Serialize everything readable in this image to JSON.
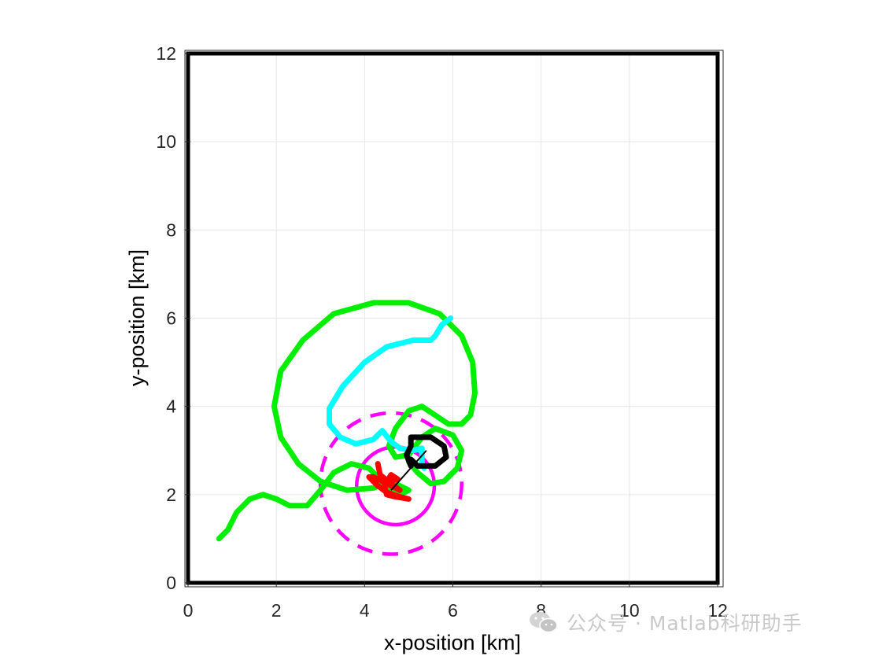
{
  "chart_data": {
    "type": "line",
    "xlabel": "x-position [km]",
    "ylabel": "y-position [km]",
    "xlim": [
      0,
      12
    ],
    "ylim": [
      0,
      12
    ],
    "xticks": [
      0,
      2,
      4,
      6,
      8,
      10,
      12
    ],
    "yticks": [
      0,
      2,
      4,
      6,
      8,
      10,
      12
    ],
    "grid": true,
    "colors": {
      "green": "#00ee00",
      "cyan": "#00ffff",
      "black": "#000000",
      "red": "#ff0000",
      "magenta": "#ff00ff",
      "border": "#000000"
    },
    "series": [
      {
        "color": "green",
        "points": [
          [
            0.7,
            1.0
          ],
          [
            0.9,
            1.2
          ],
          [
            1.1,
            1.6
          ],
          [
            1.4,
            1.9
          ],
          [
            1.7,
            2.0
          ],
          [
            2.0,
            1.9
          ],
          [
            2.3,
            1.75
          ],
          [
            2.7,
            1.75
          ],
          [
            3.0,
            2.1
          ],
          [
            3.3,
            2.5
          ],
          [
            3.7,
            2.7
          ],
          [
            4.1,
            2.6
          ],
          [
            4.4,
            2.3
          ],
          [
            4.6,
            2.1
          ],
          [
            4.8,
            2.0
          ],
          [
            5.0,
            2.1
          ],
          [
            4.6,
            2.3
          ],
          [
            4.2,
            2.15
          ],
          [
            3.6,
            2.1
          ],
          [
            3.0,
            2.3
          ],
          [
            2.5,
            2.7
          ],
          [
            2.1,
            3.3
          ],
          [
            1.95,
            4.0
          ],
          [
            2.1,
            4.8
          ],
          [
            2.6,
            5.5
          ],
          [
            3.3,
            6.1
          ],
          [
            4.2,
            6.35
          ],
          [
            5.0,
            6.35
          ],
          [
            5.7,
            6.1
          ],
          [
            6.2,
            5.6
          ],
          [
            6.45,
            5.0
          ],
          [
            6.5,
            4.3
          ],
          [
            6.4,
            3.8
          ],
          [
            6.2,
            3.6
          ],
          [
            5.9,
            3.6
          ],
          [
            5.6,
            3.8
          ],
          [
            5.3,
            4.0
          ],
          [
            5.0,
            3.9
          ],
          [
            4.7,
            3.5
          ],
          [
            4.55,
            3.1
          ],
          [
            4.7,
            2.85
          ],
          [
            5.0,
            2.9
          ],
          [
            5.3,
            3.3
          ],
          [
            5.6,
            3.5
          ],
          [
            6.0,
            3.35
          ],
          [
            6.2,
            3.0
          ],
          [
            6.1,
            2.6
          ],
          [
            5.8,
            2.3
          ],
          [
            5.5,
            2.25
          ],
          [
            5.2,
            2.5
          ],
          [
            5.0,
            2.75
          ]
        ]
      },
      {
        "color": "cyan",
        "points": [
          [
            5.95,
            6.0
          ],
          [
            5.75,
            5.85
          ],
          [
            5.6,
            5.6
          ],
          [
            5.5,
            5.5
          ],
          [
            5.1,
            5.5
          ],
          [
            4.5,
            5.35
          ],
          [
            4.0,
            5.0
          ],
          [
            3.5,
            4.45
          ],
          [
            3.2,
            3.95
          ],
          [
            3.2,
            3.6
          ],
          [
            3.45,
            3.3
          ],
          [
            3.8,
            3.15
          ],
          [
            4.2,
            3.25
          ],
          [
            4.4,
            3.45
          ],
          [
            4.6,
            3.2
          ],
          [
            4.8,
            3.05
          ],
          [
            5.1,
            3.0
          ],
          [
            5.3,
            3.05
          ],
          [
            5.3,
            2.8
          ],
          [
            5.3,
            2.7
          ],
          [
            5.35,
            2.6
          ]
        ]
      },
      {
        "color": "black",
        "points": [
          [
            5.05,
            2.65
          ],
          [
            4.95,
            2.9
          ],
          [
            5.05,
            3.1
          ],
          [
            5.05,
            3.3
          ],
          [
            5.5,
            3.3
          ],
          [
            5.8,
            3.1
          ],
          [
            5.85,
            2.85
          ],
          [
            5.6,
            2.65
          ],
          [
            5.2,
            2.65
          ],
          [
            5.05,
            2.8
          ]
        ]
      },
      {
        "color": "red",
        "points": [
          [
            4.3,
            2.7
          ],
          [
            4.35,
            2.45
          ],
          [
            4.6,
            2.25
          ],
          [
            4.8,
            2.1
          ],
          [
            4.5,
            2.25
          ],
          [
            4.2,
            2.4
          ],
          [
            4.1,
            2.4
          ],
          [
            4.3,
            2.2
          ],
          [
            4.5,
            2.05
          ],
          [
            4.8,
            1.95
          ],
          [
            5.0,
            1.9
          ],
          [
            4.7,
            1.95
          ],
          [
            4.5,
            2.0
          ],
          [
            4.45,
            2.2
          ],
          [
            4.6,
            2.45
          ],
          [
            4.75,
            2.35
          ],
          [
            4.55,
            2.3
          ]
        ]
      }
    ],
    "circles": [
      {
        "color": "magenta",
        "center": [
          4.7,
          2.2
        ],
        "radius": 0.88,
        "style": "solid"
      },
      {
        "color": "magenta",
        "center": [
          4.6,
          2.25
        ],
        "radius": 1.6,
        "style": "dashed"
      }
    ],
    "segments": [
      {
        "color": "black",
        "from": [
          4.6,
          2.1
        ],
        "to": [
          5.4,
          3.0
        ]
      }
    ]
  },
  "watermark": {
    "text": "公众号 · Matlab科研助手",
    "icon": "wechat-icon"
  }
}
